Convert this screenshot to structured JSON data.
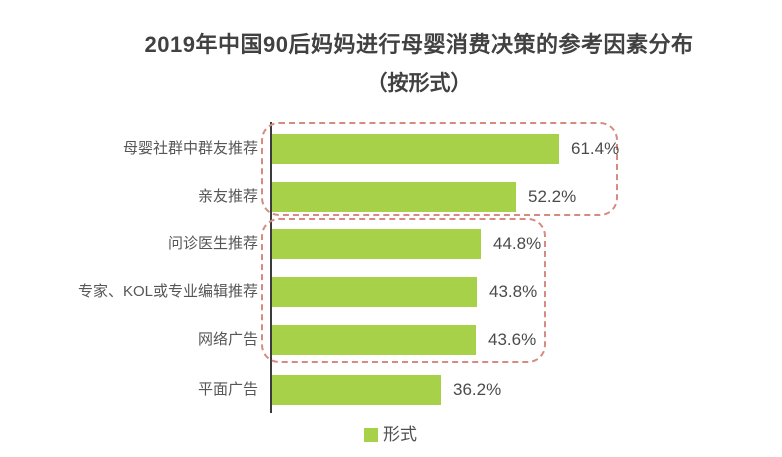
{
  "title": {
    "line1": "2019年中国90后妈妈进行母婴消费决策的参考因素分布",
    "line2": "（按形式）"
  },
  "chart_data": {
    "type": "bar",
    "orientation": "horizontal",
    "title": "2019年中国90后妈妈进行母婴消费决策的参考因素分布（按形式）",
    "categories": [
      "母婴社群中群友推荐",
      "亲友推荐",
      "问诊医生推荐",
      "专家、KOL或专业编辑推荐",
      "网络广告",
      "平面广告"
    ],
    "values": [
      61.4,
      52.2,
      44.8,
      43.8,
      43.6,
      36.2
    ],
    "value_labels": [
      "61.4%",
      "52.2%",
      "44.8%",
      "43.8%",
      "43.6%",
      "36.2%"
    ],
    "unit": "%",
    "xlim": [
      0,
      100
    ],
    "grid": false,
    "value_labels_position": "right-of-bar",
    "legend": [
      {
        "label": "形式",
        "color": "#a8d14a"
      }
    ],
    "legend_position": "bottom-center",
    "annotation_groups": [
      {
        "members": [
          "母婴社群中群友推荐",
          "亲友推荐"
        ],
        "style": "red-dashed-rounded-box"
      },
      {
        "members": [
          "问诊医生推荐",
          "专家、KOL或专业编辑推荐",
          "网络广告"
        ],
        "style": "red-dashed-rounded-box"
      }
    ]
  },
  "colors": {
    "bar": "#a8d14a",
    "group_box_border": "#d68a80",
    "axis_line": "#3b3b3b",
    "title_text": "#414141",
    "category_text": "#565656",
    "value_text": "#4b4b4b",
    "background": "#ffffff"
  }
}
